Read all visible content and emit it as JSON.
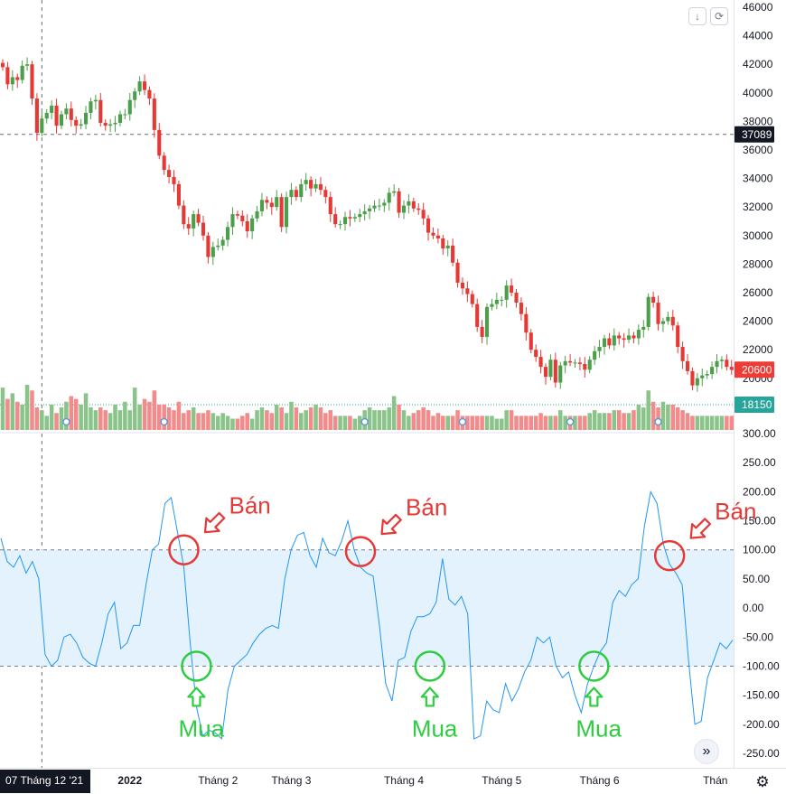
{
  "toolbar": {
    "download_icon": "download-arrow-icon",
    "download_glyph": "↓",
    "refresh_icon": "refresh-icon",
    "refresh_glyph": "⟳",
    "scroll_icon": "double-chevron-right-icon",
    "scroll_glyph": "»",
    "settings_icon": "gear-icon",
    "settings_glyph": "⚙"
  },
  "colors": {
    "up": "#26a69a",
    "candle_up": "#4c9f4a",
    "down": "#e53935",
    "vol_up": "#8bc48a",
    "vol_down": "#f28b8b",
    "cci_line": "#2196f3",
    "band_fill": "#e3f2fd",
    "sell": "#e53935",
    "buy": "#2ecc40",
    "price_label": "#ef3b36",
    "crosshair_label": "#131722"
  },
  "chart_data": [
    {
      "type": "candlestick",
      "y_ticks": [
        46000,
        44000,
        42000,
        40000,
        38000,
        36000,
        34000,
        32000,
        30000,
        28000,
        26000,
        24000,
        22000,
        20000
      ],
      "ylim": [
        18150,
        46000
      ],
      "price_labels": {
        "crosshair": "37089",
        "last": "20600",
        "volume": "18150"
      },
      "crosshair_price": 37089,
      "last_price": 20600,
      "volume_level": 18150,
      "closes": [
        41800,
        40600,
        41100,
        40900,
        41900,
        42000,
        39600,
        37200,
        38200,
        38600,
        39100,
        37700,
        38500,
        38900,
        38100,
        37700,
        37800,
        38600,
        39400,
        39500,
        37900,
        37700,
        37800,
        37900,
        38500,
        38500,
        39500,
        40100,
        40800,
        40200,
        39600,
        37400,
        35600,
        34600,
        34100,
        33600,
        32100,
        30800,
        30500,
        31500,
        30900,
        30000,
        28500,
        29200,
        29300,
        29700,
        30600,
        31500,
        31400,
        31000,
        30300,
        31200,
        31700,
        32500,
        32300,
        32000,
        32700,
        30600,
        32700,
        33200,
        32700,
        33600,
        33900,
        33300,
        33600,
        33200,
        32700,
        31500,
        30800,
        30800,
        31300,
        31200,
        31300,
        31500,
        31700,
        31900,
        32100,
        32100,
        32300,
        33000,
        33100,
        31600,
        32100,
        32400,
        31900,
        31800,
        31200,
        30200,
        30000,
        29800,
        29100,
        29300,
        28100,
        26700,
        26300,
        25900,
        25200,
        23600,
        22900,
        25000,
        25200,
        25500,
        25500,
        26500,
        26000,
        25300,
        24500,
        23200,
        22000,
        21500,
        20800,
        20100,
        21300,
        19700,
        20900,
        21200,
        21100,
        21100,
        21000,
        20600,
        21300,
        21900,
        22200,
        22800,
        22300,
        23000,
        22800,
        22700,
        23000,
        22800,
        23400,
        23600,
        25700,
        25300,
        23800,
        24000,
        24300,
        23700,
        22200,
        21200,
        20500,
        19500,
        20000,
        20200,
        20300,
        20800,
        21200,
        21300,
        20800,
        20600
      ],
      "volumes": [
        1500,
        1100,
        1300,
        1000,
        900,
        1600,
        1400,
        800,
        700,
        500,
        900,
        600,
        800,
        1000,
        1200,
        1100,
        900,
        1300,
        800,
        700,
        800,
        700,
        600,
        900,
        700,
        1000,
        700,
        1500,
        900,
        1100,
        1000,
        1400,
        900,
        900,
        800,
        700,
        1000,
        600,
        700,
        800,
        600,
        600,
        700,
        600,
        500,
        600,
        500,
        400,
        400,
        500,
        600,
        400,
        700,
        800,
        700,
        600,
        900,
        800,
        600,
        1000,
        800,
        600,
        700,
        800,
        900,
        800,
        600,
        700,
        500,
        500,
        500,
        500,
        400,
        500,
        700,
        800,
        700,
        700,
        700,
        800,
        1200,
        900,
        700,
        500,
        600,
        700,
        800,
        700,
        500,
        600,
        500,
        500,
        500,
        700,
        500,
        500,
        500,
        500,
        500,
        500,
        500,
        400,
        400,
        700,
        700,
        500,
        500,
        500,
        500,
        500,
        600,
        500,
        500,
        500,
        700,
        500,
        500,
        500,
        500,
        500,
        600,
        700,
        600,
        600,
        600,
        700,
        700,
        600,
        600,
        700,
        900,
        800,
        1400,
        1000,
        800,
        1000,
        900,
        900,
        800,
        700,
        600,
        500,
        500,
        500,
        500,
        500,
        500,
        500,
        500,
        500
      ],
      "dividend_markers_at": [
        13,
        33,
        74,
        94,
        116,
        134
      ],
      "time_labels": [
        {
          "text": "07 Tháng 12 '21",
          "highlight": true
        },
        {
          "text": "2022"
        },
        {
          "text": "Tháng 2"
        },
        {
          "text": "Tháng 3"
        },
        {
          "text": "Tháng 4"
        },
        {
          "text": "Tháng 5"
        },
        {
          "text": "Tháng 6"
        },
        {
          "text": "Thán"
        }
      ],
      "time_label_at": [
        8,
        26,
        44,
        59,
        82,
        102,
        122,
        145
      ]
    },
    {
      "type": "line",
      "y_ticks": [
        "300.00",
        "250.00",
        "200.00",
        "150.00",
        "100.00",
        "50.00",
        "0.00",
        "-50.00",
        "-100.00",
        "-150.00",
        "-200.00",
        "-250.00"
      ],
      "ylim": [
        -250,
        300
      ],
      "band": [
        -100,
        100
      ],
      "values": [
        120,
        80,
        70,
        90,
        60,
        80,
        50,
        -80,
        -100,
        -90,
        -50,
        -45,
        -60,
        -85,
        -95,
        -100,
        -60,
        -10,
        10,
        -70,
        -60,
        -30,
        -30,
        40,
        100,
        110,
        180,
        190,
        130,
        70,
        -60,
        -170,
        -220,
        -210,
        -215,
        -225,
        -140,
        -100,
        -90,
        -80,
        -60,
        -45,
        -35,
        -30,
        -35,
        50,
        100,
        125,
        130,
        90,
        70,
        120,
        95,
        90,
        115,
        150,
        100,
        70,
        60,
        55,
        -30,
        -130,
        -160,
        -90,
        -85,
        -40,
        -15,
        -15,
        -10,
        10,
        85,
        15,
        5,
        20,
        -10,
        -225,
        -220,
        -160,
        -175,
        -180,
        -130,
        -160,
        -140,
        -110,
        -90,
        -50,
        -60,
        -50,
        -100,
        -120,
        -110,
        -150,
        -180,
        -130,
        -100,
        -75,
        -60,
        10,
        30,
        20,
        40,
        50,
        140,
        200,
        180,
        110,
        75,
        60,
        40,
        -90,
        -200,
        -195,
        -120,
        -90,
        -60,
        -70,
        -55
      ],
      "annotations": [
        {
          "label": "Bán",
          "kind": "sell",
          "at": 29,
          "value": 100
        },
        {
          "label": "Bán",
          "kind": "sell",
          "at": 57,
          "value": 97
        },
        {
          "label": "Bán",
          "kind": "sell",
          "at": 106,
          "value": 90
        },
        {
          "label": "Mua",
          "kind": "buy",
          "at": 31,
          "value": -100
        },
        {
          "label": "Mua",
          "kind": "buy",
          "at": 68,
          "value": -100
        },
        {
          "label": "Mua",
          "kind": "buy",
          "at": 94,
          "value": -100
        }
      ]
    }
  ]
}
